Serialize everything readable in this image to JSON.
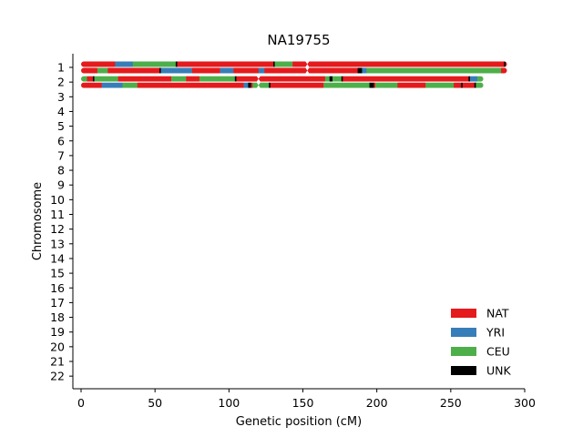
{
  "chart_data": {
    "type": "karyogram",
    "title": "NA19755",
    "xlabel": "Genetic position (cM)",
    "ylabel": "Chromosome",
    "xlim": [
      -5,
      300
    ],
    "xticks": [
      0,
      50,
      100,
      150,
      200,
      250,
      300
    ],
    "chromosomes": [
      "1",
      "2",
      "3",
      "4",
      "5",
      "6",
      "7",
      "8",
      "9",
      "10",
      "11",
      "12",
      "13",
      "14",
      "15",
      "16",
      "17",
      "18",
      "19",
      "20",
      "21",
      "22"
    ],
    "legend": {
      "placement": "lower-right",
      "entries": [
        {
          "label": "NAT",
          "color": "#e41a1c"
        },
        {
          "label": "YRI",
          "color": "#377eb8"
        },
        {
          "label": "CEU",
          "color": "#4daf4a"
        },
        {
          "label": "UNK",
          "color": "#000000"
        }
      ]
    },
    "tracks": [
      {
        "chromosome": "1",
        "haplotype": "A",
        "centromere": 153,
        "segments": [
          {
            "start": 0,
            "end": 23,
            "ancestry": "NAT"
          },
          {
            "start": 23,
            "end": 35,
            "ancestry": "YRI"
          },
          {
            "start": 35,
            "end": 64,
            "ancestry": "CEU"
          },
          {
            "start": 64,
            "end": 65,
            "ancestry": "UNK"
          },
          {
            "start": 65,
            "end": 130,
            "ancestry": "NAT"
          },
          {
            "start": 130,
            "end": 131,
            "ancestry": "UNK"
          },
          {
            "start": 131,
            "end": 143,
            "ancestry": "CEU"
          },
          {
            "start": 143,
            "end": 286,
            "ancestry": "NAT"
          },
          {
            "start": 286,
            "end": 287,
            "ancestry": "UNK"
          },
          {
            "start": 287,
            "end": 288,
            "ancestry": "NAT"
          }
        ]
      },
      {
        "chromosome": "1",
        "haplotype": "B",
        "centromere": 153,
        "segments": [
          {
            "start": 0,
            "end": 11,
            "ancestry": "NAT"
          },
          {
            "start": 11,
            "end": 18,
            "ancestry": "CEU"
          },
          {
            "start": 18,
            "end": 53,
            "ancestry": "NAT"
          },
          {
            "start": 53,
            "end": 54,
            "ancestry": "UNK"
          },
          {
            "start": 54,
            "end": 75,
            "ancestry": "YRI"
          },
          {
            "start": 75,
            "end": 94,
            "ancestry": "NAT"
          },
          {
            "start": 94,
            "end": 103,
            "ancestry": "YRI"
          },
          {
            "start": 103,
            "end": 120,
            "ancestry": "NAT"
          },
          {
            "start": 120,
            "end": 124,
            "ancestry": "YRI"
          },
          {
            "start": 124,
            "end": 187,
            "ancestry": "NAT"
          },
          {
            "start": 187,
            "end": 190,
            "ancestry": "UNK"
          },
          {
            "start": 190,
            "end": 193,
            "ancestry": "YRI"
          },
          {
            "start": 193,
            "end": 284,
            "ancestry": "CEU"
          },
          {
            "start": 284,
            "end": 288,
            "ancestry": "NAT"
          }
        ]
      },
      {
        "chromosome": "2",
        "haplotype": "A",
        "centromere": 120,
        "segments": [
          {
            "start": 0,
            "end": 4,
            "ancestry": "CEU"
          },
          {
            "start": 4,
            "end": 8,
            "ancestry": "NAT"
          },
          {
            "start": 8,
            "end": 9,
            "ancestry": "UNK"
          },
          {
            "start": 9,
            "end": 25,
            "ancestry": "CEU"
          },
          {
            "start": 25,
            "end": 61,
            "ancestry": "NAT"
          },
          {
            "start": 61,
            "end": 71,
            "ancestry": "CEU"
          },
          {
            "start": 71,
            "end": 80,
            "ancestry": "NAT"
          },
          {
            "start": 80,
            "end": 104,
            "ancestry": "CEU"
          },
          {
            "start": 104,
            "end": 105,
            "ancestry": "UNK"
          },
          {
            "start": 105,
            "end": 165,
            "ancestry": "NAT"
          },
          {
            "start": 165,
            "end": 168,
            "ancestry": "CEU"
          },
          {
            "start": 168,
            "end": 170,
            "ancestry": "UNK"
          },
          {
            "start": 170,
            "end": 176,
            "ancestry": "CEU"
          },
          {
            "start": 176,
            "end": 177,
            "ancestry": "UNK"
          },
          {
            "start": 177,
            "end": 262,
            "ancestry": "NAT"
          },
          {
            "start": 262,
            "end": 263,
            "ancestry": "UNK"
          },
          {
            "start": 263,
            "end": 268,
            "ancestry": "YRI"
          },
          {
            "start": 268,
            "end": 272,
            "ancestry": "CEU"
          }
        ]
      },
      {
        "chromosome": "2",
        "haplotype": "B",
        "centromere": 120,
        "segments": [
          {
            "start": 0,
            "end": 14,
            "ancestry": "NAT"
          },
          {
            "start": 14,
            "end": 28,
            "ancestry": "YRI"
          },
          {
            "start": 28,
            "end": 29,
            "ancestry": "CEU"
          },
          {
            "start": 29,
            "end": 38,
            "ancestry": "CEU"
          },
          {
            "start": 38,
            "end": 110,
            "ancestry": "NAT"
          },
          {
            "start": 110,
            "end": 113,
            "ancestry": "YRI"
          },
          {
            "start": 113,
            "end": 115,
            "ancestry": "UNK"
          },
          {
            "start": 115,
            "end": 116,
            "ancestry": "NAT"
          },
          {
            "start": 116,
            "end": 122,
            "ancestry": "CEU"
          },
          {
            "start": 122,
            "end": 127,
            "ancestry": "CEU"
          },
          {
            "start": 127,
            "end": 128,
            "ancestry": "UNK"
          },
          {
            "start": 128,
            "end": 164,
            "ancestry": "NAT"
          },
          {
            "start": 164,
            "end": 195,
            "ancestry": "CEU"
          },
          {
            "start": 195,
            "end": 198,
            "ancestry": "UNK"
          },
          {
            "start": 198,
            "end": 199,
            "ancestry": "NAT"
          },
          {
            "start": 199,
            "end": 214,
            "ancestry": "CEU"
          },
          {
            "start": 214,
            "end": 233,
            "ancestry": "NAT"
          },
          {
            "start": 233,
            "end": 252,
            "ancestry": "CEU"
          },
          {
            "start": 252,
            "end": 257,
            "ancestry": "NAT"
          },
          {
            "start": 257,
            "end": 258,
            "ancestry": "UNK"
          },
          {
            "start": 258,
            "end": 266,
            "ancestry": "NAT"
          },
          {
            "start": 266,
            "end": 267,
            "ancestry": "UNK"
          },
          {
            "start": 267,
            "end": 272,
            "ancestry": "CEU"
          }
        ]
      }
    ]
  }
}
